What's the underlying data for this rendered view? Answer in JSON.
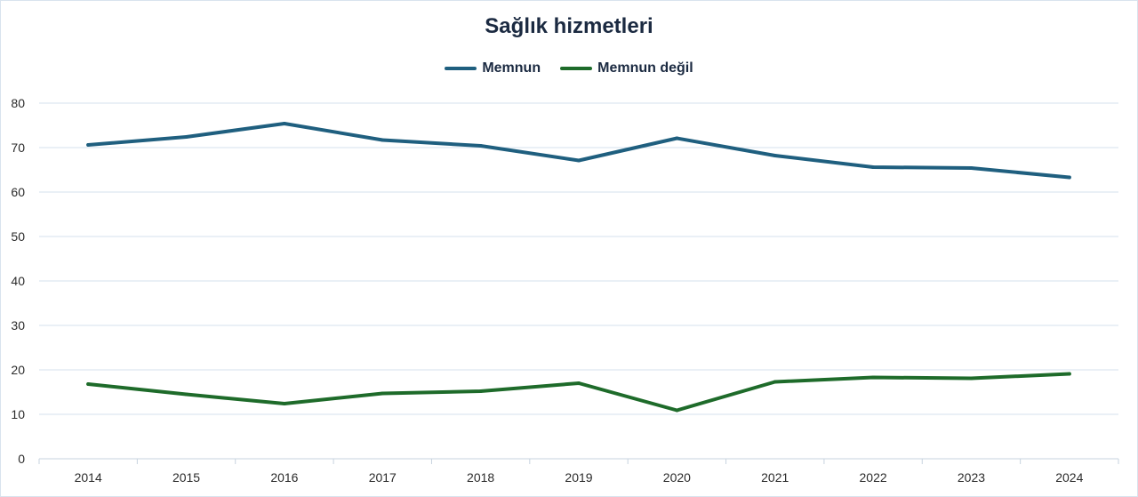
{
  "chart_data": {
    "type": "line",
    "title": "Sağlık hizmetleri",
    "xlabel": "",
    "ylabel": "",
    "legend_position": "top-center",
    "grid": true,
    "ylim": [
      0,
      80
    ],
    "yticks": [
      0,
      10,
      20,
      30,
      40,
      50,
      60,
      70,
      80
    ],
    "categories": [
      "2014",
      "2015",
      "2016",
      "2017",
      "2018",
      "2019",
      "2020",
      "2021",
      "2022",
      "2023",
      "2024"
    ],
    "series": [
      {
        "name": "Memnun",
        "color": "#1f5f7f",
        "values": [
          70.6,
          72.4,
          75.4,
          71.7,
          70.4,
          67.1,
          72.1,
          68.2,
          65.6,
          65.4,
          63.3
        ]
      },
      {
        "name": "Memnun değil",
        "color": "#1e6b2a",
        "values": [
          16.8,
          14.5,
          12.4,
          14.7,
          15.2,
          17.0,
          10.9,
          17.3,
          18.3,
          18.1,
          19.1
        ]
      }
    ]
  }
}
